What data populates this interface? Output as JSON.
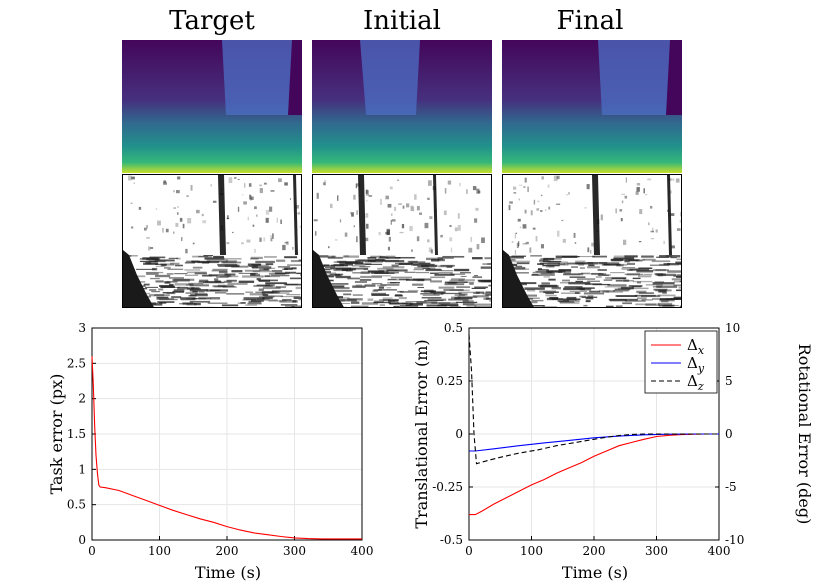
{
  "columns": [
    {
      "title": "Target"
    },
    {
      "title": "Initial"
    },
    {
      "title": "Final"
    }
  ],
  "colors": {
    "depth_dark": "#44065a",
    "depth_mid": "#3b528b",
    "depth_light": "#4c6fc4",
    "depth_green": "#2ab07f",
    "depth_yellow": "#c8df2a",
    "dx": "#ff0000",
    "dy": "#0000ff",
    "dz": "#000000"
  },
  "chart_data": [
    {
      "type": "line",
      "xlabel": "Time (s)",
      "ylabel": "Task error (px)",
      "xlim": [
        0,
        400
      ],
      "ylim": [
        0,
        3
      ],
      "xticks": [
        "0",
        "100",
        "200",
        "300",
        "400"
      ],
      "yticks": [
        "0",
        "0.5",
        "1",
        "1.5",
        "2",
        "2.5",
        "3"
      ],
      "grid": true,
      "series": [
        {
          "color": "#ff0000",
          "x": [
            0,
            2,
            4,
            6,
            8,
            10,
            12,
            20,
            40,
            60,
            80,
            100,
            120,
            140,
            160,
            180,
            200,
            220,
            240,
            260,
            280,
            300,
            320,
            340,
            360,
            380,
            400
          ],
          "y": [
            2.6,
            2.2,
            1.6,
            1.2,
            0.95,
            0.78,
            0.75,
            0.74,
            0.7,
            0.63,
            0.56,
            0.49,
            0.42,
            0.36,
            0.3,
            0.25,
            0.19,
            0.14,
            0.1,
            0.075,
            0.05,
            0.03,
            0.02,
            0.015,
            0.015,
            0.015,
            0.015
          ]
        }
      ]
    },
    {
      "type": "line",
      "xlabel": "Time (s)",
      "ylabel": "Translational Error (m)",
      "y2label": "Rotational Error (deg)",
      "xlim": [
        0,
        400
      ],
      "ylim": [
        -0.5,
        0.5
      ],
      "y2lim": [
        -10,
        10
      ],
      "xticks": [
        "0",
        "100",
        "200",
        "300",
        "400"
      ],
      "yticks": [
        "-0.5",
        "-0.25",
        "0",
        "0.25",
        "0.5"
      ],
      "y2ticks": [
        "-10",
        "-5",
        "0",
        "5",
        "10"
      ],
      "grid": true,
      "legend": "top-right",
      "series": [
        {
          "name": "Δx",
          "label_base": "Δ",
          "label_sub": "x",
          "color": "#ff0000",
          "style": "solid",
          "x": [
            0,
            10,
            20,
            40,
            60,
            80,
            100,
            120,
            140,
            160,
            180,
            200,
            220,
            240,
            260,
            280,
            300,
            320,
            340,
            360,
            380,
            400
          ],
          "y": [
            -0.38,
            -0.38,
            -0.365,
            -0.33,
            -0.3,
            -0.27,
            -0.24,
            -0.215,
            -0.185,
            -0.16,
            -0.135,
            -0.105,
            -0.08,
            -0.055,
            -0.04,
            -0.025,
            -0.012,
            -0.006,
            -0.003,
            -0.001,
            0,
            0
          ]
        },
        {
          "name": "Δy",
          "label_base": "Δ",
          "label_sub": "y",
          "color": "#0000ff",
          "style": "solid",
          "x": [
            0,
            10,
            40,
            80,
            120,
            160,
            200,
            240,
            280,
            320,
            360,
            400
          ],
          "y": [
            -0.08,
            -0.08,
            -0.07,
            -0.055,
            -0.042,
            -0.03,
            -0.018,
            -0.01,
            -0.004,
            -0.001,
            0,
            0
          ]
        },
        {
          "name": "Δz",
          "label_base": "Δ",
          "label_sub": "z",
          "color": "#000000",
          "style": "dashed",
          "axis": "right",
          "x": [
            0,
            4,
            8,
            12,
            30,
            50,
            80,
            110,
            140,
            170,
            200,
            220,
            240,
            260,
            280,
            300,
            340,
            400
          ],
          "y": [
            9.4,
            6.0,
            0.0,
            -2.8,
            -2.5,
            -2.2,
            -1.8,
            -1.5,
            -1.1,
            -0.8,
            -0.5,
            -0.3,
            -0.15,
            -0.05,
            0,
            0,
            0,
            0
          ]
        }
      ]
    }
  ]
}
